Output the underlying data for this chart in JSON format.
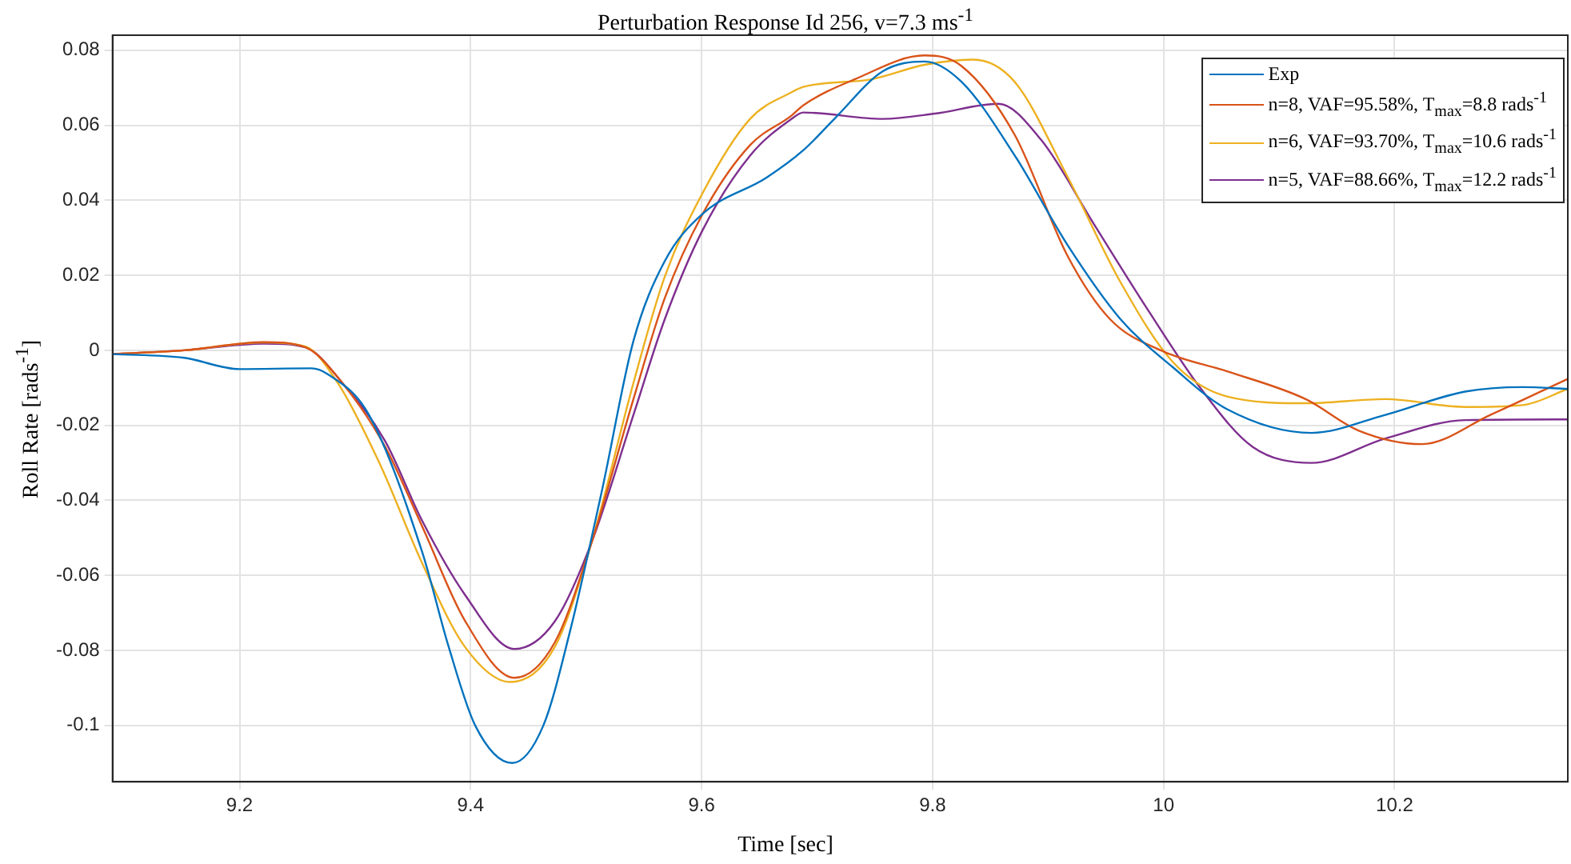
{
  "chart_data": {
    "type": "line",
    "title": "Perturbation Response Id 256, v=7.3 ms$^{-1}$",
    "xlabel": "Time [sec]",
    "ylabel": "Roll Rate [rads$^{-1}$]",
    "xlim": [
      9.09,
      10.35
    ],
    "xticks": [
      9.2,
      9.4,
      9.6,
      9.8,
      {
        "value": 10,
        "label": "10"
      },
      10.2
    ],
    "ylim": [
      -0.115,
      0.084
    ],
    "yticks": [
      -0.1,
      -0.08,
      -0.06,
      -0.04,
      -0.02,
      {
        "value": 0,
        "label": "0"
      },
      0.02,
      0.04,
      0.06,
      0.08
    ],
    "grid": true,
    "legend": "top right",
    "series": [
      {
        "name": "Exp",
        "color": "#0072bd",
        "x": [
          9.09,
          9.152,
          9.2,
          9.262,
          9.276,
          9.312,
          9.358,
          9.381,
          9.404,
          9.436,
          9.463,
          9.486,
          9.514,
          9.541,
          9.568,
          9.601,
          9.656,
          9.688,
          9.715,
          9.757,
          9.793,
          9.825,
          9.871,
          9.917,
          9.963,
          10.008,
          10.055,
          10.128,
          10.192,
          10.261,
          10.311,
          10.35
        ],
        "values": [
          -0.001,
          -0.002,
          -0.005,
          -0.0048,
          -0.0063,
          -0.0172,
          -0.0537,
          -0.079,
          -0.1,
          -0.11,
          -0.1,
          -0.075,
          -0.037,
          0.0025,
          0.0237,
          0.0364,
          0.046,
          0.0533,
          0.0617,
          0.0744,
          0.077,
          0.0716,
          0.052,
          0.028,
          0.0082,
          -0.0045,
          -0.0157,
          -0.022,
          -0.0172,
          -0.011,
          -0.0098,
          -0.0103
        ]
      },
      {
        "name": "n=8, VAF=95.58%, T$_{max}$=8.8 rads$^{-1}$",
        "color": "#d95319",
        "x": [
          9.09,
          9.152,
          9.221,
          9.257,
          9.289,
          9.326,
          9.358,
          9.395,
          9.438,
          9.473,
          9.505,
          9.541,
          9.568,
          9.601,
          9.642,
          9.678,
          9.688,
          9.733,
          9.793,
          9.825,
          9.871,
          9.917,
          9.954,
          10.0,
          10.055,
          10.123,
          10.169,
          10.224,
          10.283,
          10.35
        ],
        "values": [
          -0.001,
          0,
          0.0022,
          0.0008,
          -0.0087,
          -0.0257,
          -0.0469,
          -0.072,
          -0.0873,
          -0.0778,
          -0.051,
          -0.013,
          0.0138,
          0.0364,
          0.0547,
          0.0626,
          0.0653,
          0.0723,
          0.0786,
          0.0758,
          0.0575,
          0.0251,
          0.0082,
          -0.0003,
          -0.0056,
          -0.013,
          -0.0214,
          -0.025,
          -0.0172,
          -0.0076
        ]
      },
      {
        "name": "n=6, VAF=93.70%, T$_{max}$=10.6 rads$^{-1}$",
        "color": "#edb120",
        "x": [
          9.09,
          9.152,
          9.221,
          9.257,
          9.285,
          9.321,
          9.358,
          9.395,
          9.434,
          9.473,
          9.505,
          9.541,
          9.568,
          9.601,
          9.642,
          9.678,
          9.688,
          9.748,
          9.793,
          9.835,
          9.871,
          9.917,
          9.963,
          10.008,
          10.055,
          10.123,
          10.192,
          10.261,
          10.311,
          10.35
        ],
        "values": [
          -0.001,
          0,
          0.0021,
          0.001,
          -0.0087,
          -0.03,
          -0.0567,
          -0.079,
          -0.0884,
          -0.079,
          -0.051,
          -0.0087,
          0.0195,
          0.042,
          0.0617,
          0.0688,
          0.0702,
          0.0723,
          0.0761,
          0.0775,
          0.0716,
          0.0462,
          0.018,
          -0.0031,
          -0.0123,
          -0.0141,
          -0.013,
          -0.0151,
          -0.0146,
          -0.0103
        ]
      },
      {
        "name": "n=5, VAF=88.66%, T$_{max}$=12.2 rads$^{-1}$",
        "color": "#7e2f8e",
        "x": [
          9.09,
          9.152,
          9.221,
          9.257,
          9.289,
          9.326,
          9.358,
          9.395,
          9.438,
          9.473,
          9.505,
          9.541,
          9.568,
          9.601,
          9.642,
          9.678,
          9.688,
          9.757,
          9.802,
          9.857,
          9.894,
          9.94,
          9.986,
          10.032,
          10.077,
          10.128,
          10.192,
          10.261,
          10.35
        ],
        "values": [
          -0.001,
          0,
          0.0018,
          0.0008,
          -0.0087,
          -0.0242,
          -0.0454,
          -0.0651,
          -0.0796,
          -0.0722,
          -0.051,
          -0.0172,
          0.0082,
          0.0321,
          0.0519,
          0.0617,
          0.0634,
          0.0617,
          0.0631,
          0.0657,
          0.0561,
          0.0335,
          0.011,
          -0.0101,
          -0.0257,
          -0.03,
          -0.0235,
          -0.0186,
          -0.0184
        ]
      }
    ]
  }
}
